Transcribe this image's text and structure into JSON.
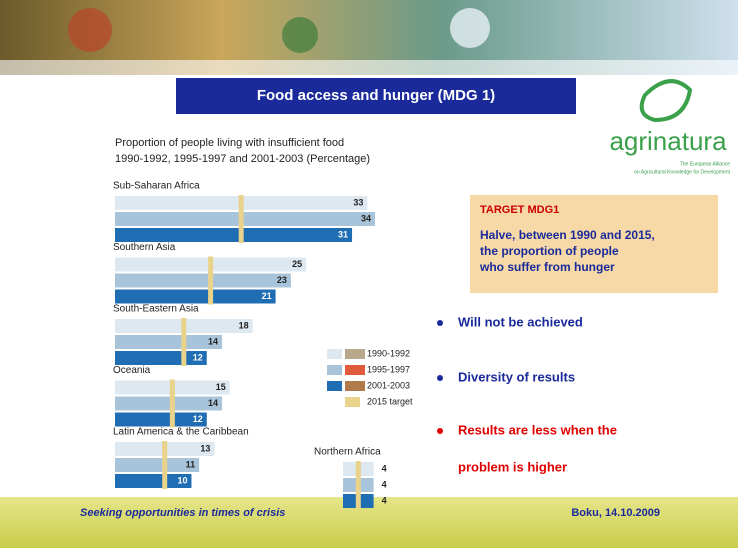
{
  "slide": {
    "title": "Food access and hunger (MDG 1)",
    "logo": {
      "name": "agrinatura",
      "tagline": [
        "The European Alliance",
        "on Agricultural Knowledge for Development"
      ]
    },
    "target_box": {
      "heading": "TARGET MDG1",
      "lines": [
        "Halve, between 1990 and 2015,",
        "the proportion of people",
        "who suffer from hunger"
      ]
    },
    "bullets": [
      {
        "lines": [
          "Will not be achieved"
        ],
        "color": "#1a2a9a"
      },
      {
        "lines": [
          "Diversity of results"
        ],
        "color": "#1a2a9a"
      },
      {
        "lines": [
          "Results are less when the",
          "problem is higher"
        ],
        "color": "#e00000"
      }
    ],
    "footer": {
      "left": "Seeking opportunities in times of crisis",
      "right": "Boku, 14.10.2009"
    }
  },
  "chart_data": {
    "type": "bar",
    "orientation": "horizontal",
    "title": [
      "Proportion of people living with insufficient food",
      "1990-1992, 1995-1997 and 2001-2003 (Percentage)"
    ],
    "categories": [
      "Sub-Saharan Africa",
      "Southern Asia",
      "South-Eastern Asia",
      "Oceania",
      "Latin America & the Caribbean",
      "Northern Africa"
    ],
    "series": [
      {
        "name": "1990-1992",
        "color": "#dde8f1",
        "values": [
          33,
          25,
          18,
          15,
          13,
          4
        ]
      },
      {
        "name": "1995-1997",
        "color": "#a8c4da",
        "values": [
          34,
          23,
          14,
          14,
          11,
          4
        ]
      },
      {
        "name": "2001-2003",
        "color": "#1f6db3",
        "values": [
          31,
          21,
          12,
          12,
          10,
          4
        ]
      },
      {
        "name": "2015 target",
        "color": "#e9d28a",
        "values": [
          16.5,
          12.5,
          9,
          7.5,
          6.5,
          2
        ]
      }
    ],
    "xlim": [
      0,
      34
    ]
  }
}
